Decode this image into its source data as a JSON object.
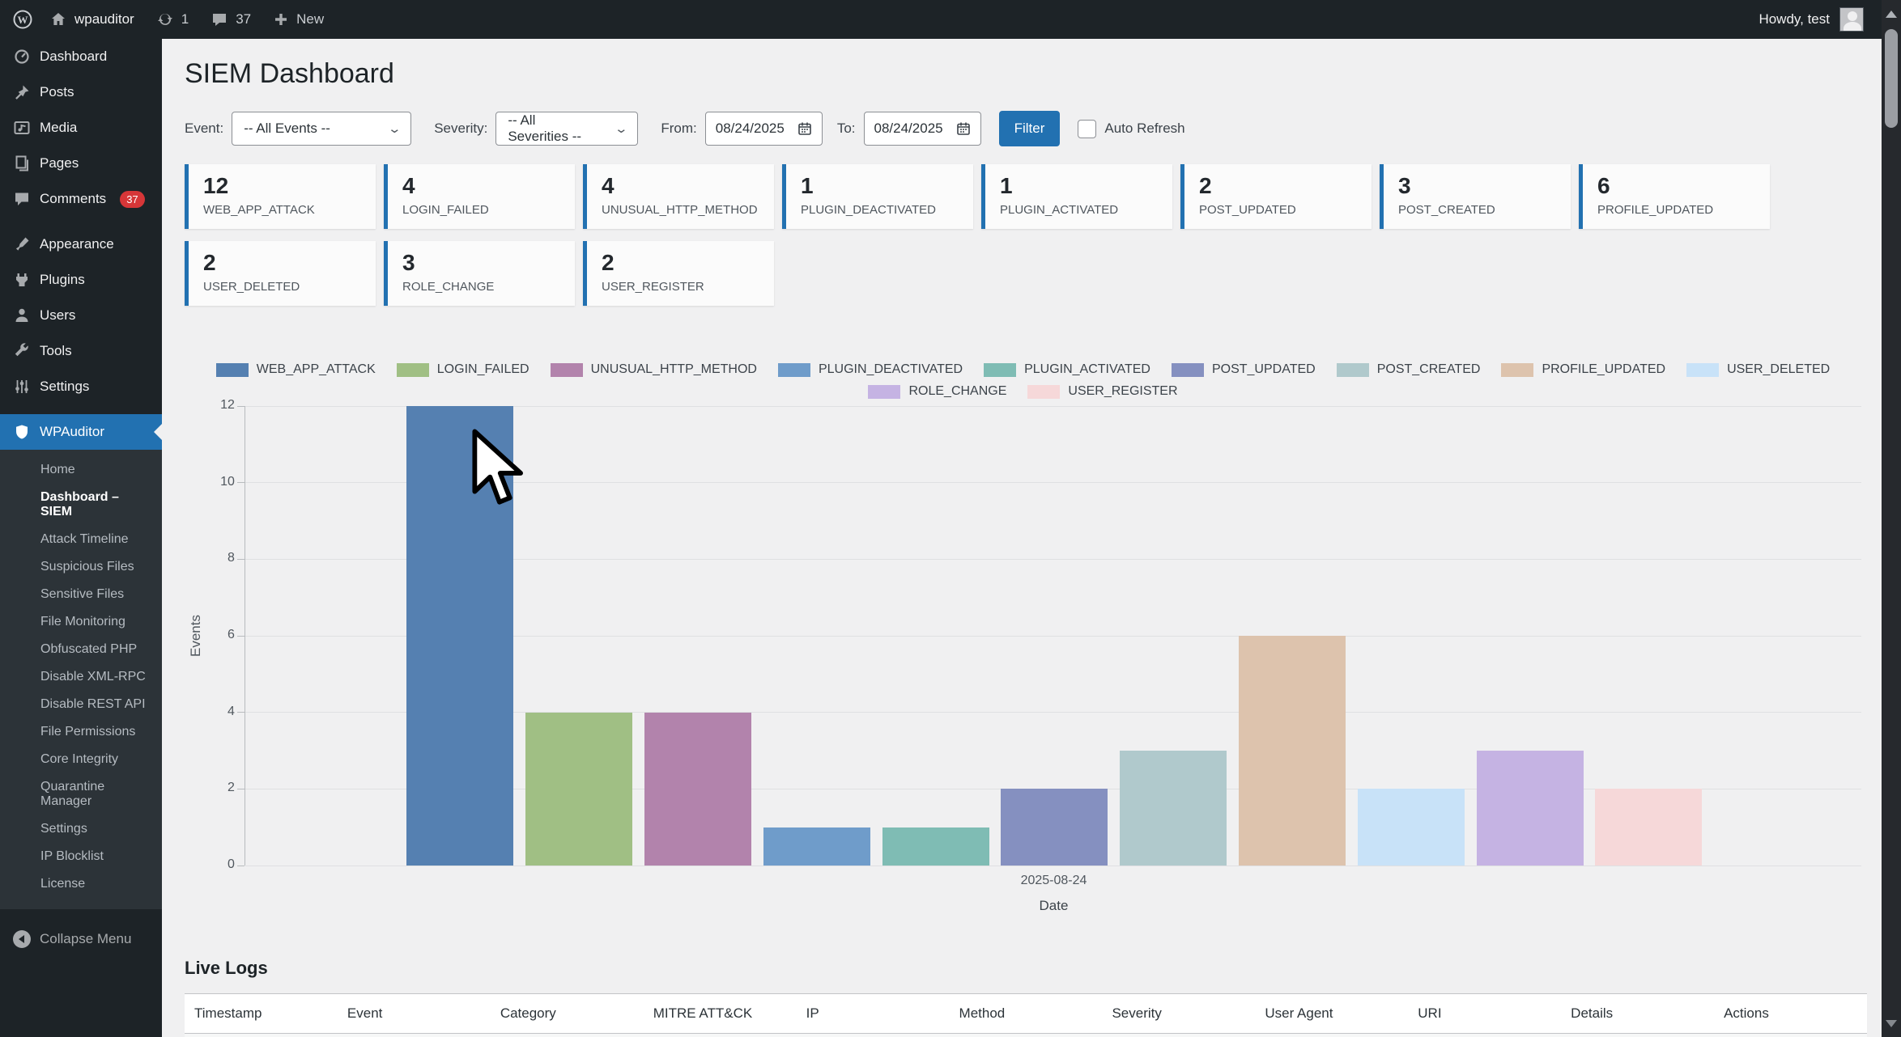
{
  "admin_bar": {
    "site_name": "wpauditor",
    "update_count": "1",
    "comment_count": "37",
    "new_label": "New",
    "howdy": "Howdy, test"
  },
  "sidebar": {
    "items": [
      {
        "label": "Dashboard",
        "icon": "dashboard-icon"
      },
      {
        "label": "Posts",
        "icon": "pin-icon"
      },
      {
        "label": "Media",
        "icon": "media-icon"
      },
      {
        "label": "Pages",
        "icon": "pages-icon"
      },
      {
        "label": "Comments",
        "icon": "comment-icon",
        "badge": "37"
      },
      {
        "label": "Appearance",
        "icon": "brush-icon",
        "sep_before": true
      },
      {
        "label": "Plugins",
        "icon": "plugin-icon"
      },
      {
        "label": "Users",
        "icon": "user-icon"
      },
      {
        "label": "Tools",
        "icon": "wrench-icon"
      },
      {
        "label": "Settings",
        "icon": "sliders-icon"
      },
      {
        "label": "WPAuditor",
        "icon": "shield-icon",
        "active": true,
        "sep_before": true
      }
    ],
    "wpauditor_submenu": [
      {
        "label": "Home"
      },
      {
        "label": "Dashboard – SIEM",
        "active": true
      },
      {
        "label": "Attack Timeline"
      },
      {
        "label": "Suspicious Files"
      },
      {
        "label": "Sensitive Files"
      },
      {
        "label": "File Monitoring"
      },
      {
        "label": "Obfuscated PHP"
      },
      {
        "label": "Disable XML-RPC"
      },
      {
        "label": "Disable REST API"
      },
      {
        "label": "File Permissions"
      },
      {
        "label": "Core Integrity"
      },
      {
        "label": "Quarantine Manager"
      },
      {
        "label": "Settings"
      },
      {
        "label": "IP Blocklist"
      },
      {
        "label": "License"
      }
    ],
    "collapse_label": "Collapse Menu"
  },
  "page": {
    "title": "SIEM Dashboard"
  },
  "filters": {
    "event_label": "Event:",
    "event_value": "-- All Events --",
    "severity_label": "Severity:",
    "severity_value": "-- All Severities --",
    "from_label": "From:",
    "from_value": "08/24/2025",
    "to_label": "To:",
    "to_value": "08/24/2025",
    "filter_button": "Filter",
    "auto_refresh_label": "Auto Refresh",
    "auto_refresh_checked": false
  },
  "stat_cards": [
    {
      "count": "12",
      "label": "WEB_APP_ATTACK"
    },
    {
      "count": "4",
      "label": "LOGIN_FAILED"
    },
    {
      "count": "4",
      "label": "UNUSUAL_HTTP_METHOD"
    },
    {
      "count": "1",
      "label": "PLUGIN_DEACTIVATED"
    },
    {
      "count": "1",
      "label": "PLUGIN_ACTIVATED"
    },
    {
      "count": "2",
      "label": "POST_UPDATED"
    },
    {
      "count": "3",
      "label": "POST_CREATED"
    },
    {
      "count": "6",
      "label": "PROFILE_UPDATED"
    },
    {
      "count": "2",
      "label": "USER_DELETED"
    },
    {
      "count": "3",
      "label": "ROLE_CHANGE"
    },
    {
      "count": "2",
      "label": "USER_REGISTER"
    }
  ],
  "chart_data": {
    "type": "bar",
    "title": "",
    "categories": [
      "WEB_APP_ATTACK",
      "LOGIN_FAILED",
      "UNUSUAL_HTTP_METHOD",
      "PLUGIN_DEACTIVATED",
      "PLUGIN_ACTIVATED",
      "POST_UPDATED",
      "POST_CREATED",
      "PROFILE_UPDATED",
      "USER_DELETED",
      "ROLE_CHANGE",
      "USER_REGISTER"
    ],
    "values": [
      12,
      4,
      4,
      1,
      1,
      2,
      3,
      6,
      2,
      3,
      2
    ],
    "colors": [
      "#5580b1",
      "#a0bf84",
      "#b283ac",
      "#6f9cca",
      "#7fbcb4",
      "#8590c0",
      "#b0c9cc",
      "#ddc3ad",
      "#c8e2f8",
      "#c5b3e3",
      "#f6d8d9"
    ],
    "x": [
      "2025-08-24"
    ],
    "x_tick_label": "2025-08-24",
    "xlabel": "Date",
    "ylabel": "Events",
    "y_ticks": [
      0,
      2,
      4,
      6,
      8,
      10,
      12
    ],
    "ylim": [
      0,
      12
    ],
    "grid": true,
    "legend_position": "top",
    "legend_rows": [
      9,
      2
    ]
  },
  "live_logs": {
    "title": "Live Logs",
    "columns": [
      "Timestamp",
      "Event",
      "Category",
      "MITRE ATT&CK",
      "IP",
      "Method",
      "Severity",
      "User Agent",
      "URI",
      "Details",
      "Actions"
    ]
  },
  "colors": {
    "accent": "#2271b1",
    "admin_dark": "#1d2327",
    "submenu_dark": "#2c3338",
    "badge_red": "#d63638",
    "severity_badge_orange": "#c97f55",
    "content_bg": "#f0f0f1"
  }
}
